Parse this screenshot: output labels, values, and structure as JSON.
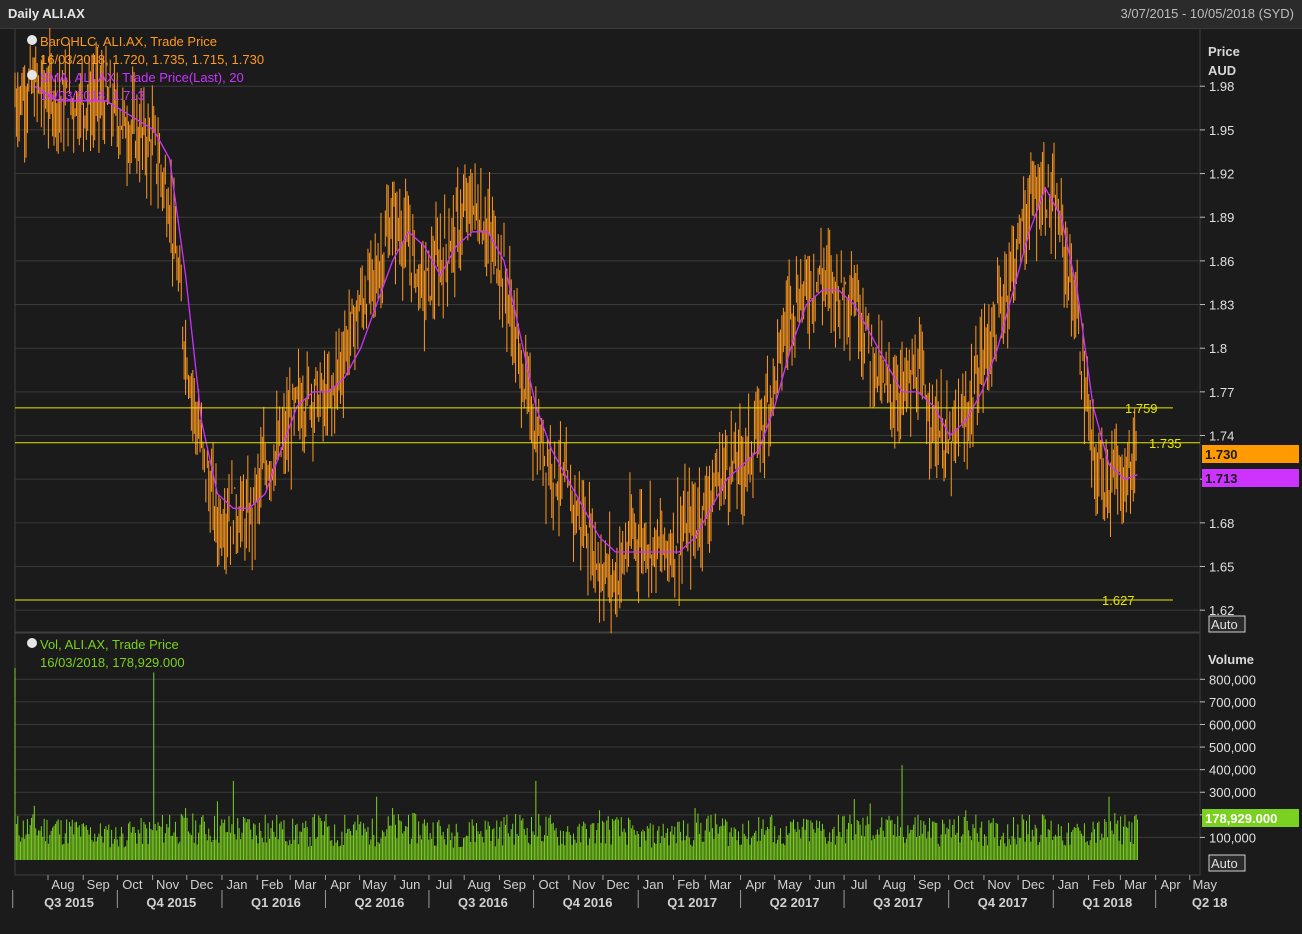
{
  "header": {
    "title": "Daily ALI.AX",
    "date_range": "3/07/2015 - 10/05/2018 (SYD)"
  },
  "colors": {
    "background": "#1b1b1b",
    "grid": "#3a3a3a",
    "price_bars": "#ff9a1f",
    "sma": "#cc33ff",
    "volume": "#7bd11f",
    "hlines": "#e6e600",
    "text_dim": "#c8c8c8"
  },
  "price_panel": {
    "legend": [
      {
        "label": "BarOHLC, ALI.AX, Trade Price",
        "values": "16/03/2018, 1.720, 1.735, 1.715, 1.730",
        "color": "#ff9a1f"
      },
      {
        "label": "SMA, ALI.AX, Trade Price(Last),  20",
        "values": "16/03/2018, 1.713",
        "color": "#cc33ff"
      }
    ],
    "axis_title": [
      "Price",
      "AUD"
    ],
    "scale_button": "Auto",
    "last_price_tag": "1.730",
    "sma_tag": "1.713"
  },
  "volume_panel": {
    "legend": {
      "label": "Vol, ALI.AX, Trade Price",
      "values": "16/03/2018, 178,929.000",
      "color": "#7bd11f"
    },
    "axis_title": "Volume",
    "scale_button": "Auto",
    "last_volume_tag": "178,929.000"
  },
  "x_axis": {
    "months": [
      "Aug",
      "Sep",
      "Oct",
      "Nov",
      "Dec",
      "Jan",
      "Feb",
      "Mar",
      "Apr",
      "May",
      "Jun",
      "Jul",
      "Aug",
      "Sep",
      "Oct",
      "Nov",
      "Dec",
      "Jan",
      "Feb",
      "Mar",
      "Apr",
      "May",
      "Jun",
      "Jul",
      "Aug",
      "Sep",
      "Oct",
      "Nov",
      "Dec",
      "Jan",
      "Feb",
      "Mar",
      "Apr",
      "May"
    ],
    "quarters": [
      "Q3 2015",
      "Q4 2015",
      "Q1 2016",
      "Q2 2016",
      "Q3 2016",
      "Q4 2016",
      "Q1 2017",
      "Q2 2017",
      "Q3 2017",
      "Q4 2017",
      "Q1 2018",
      "Q2 18"
    ]
  },
  "chart_data": [
    {
      "type": "bar",
      "subtype": "ohlc",
      "title": "BarOHLC, ALI.AX, Trade Price",
      "ylabel": "Price AUD",
      "ylim": [
        1.605,
        2.02
      ],
      "yticks": [
        1.62,
        1.65,
        1.68,
        1.71,
        1.74,
        1.77,
        1.8,
        1.83,
        1.86,
        1.89,
        1.92,
        1.95,
        1.98
      ],
      "ytick_labels": [
        "1.62",
        "1.65",
        "1.68",
        "1.71",
        "1.74",
        "1.77",
        "1.8",
        "1.83",
        "1.86",
        "1.89",
        "1.92",
        "1.95",
        "1.98"
      ],
      "grid": true,
      "last_bar": {
        "date": "16/03/2018",
        "open": 1.72,
        "high": 1.735,
        "low": 1.715,
        "close": 1.73
      },
      "series": [
        {
          "name": "BarOHLC, ALI.AX, Trade Price",
          "x": [
            "2015-07-03",
            "2015-07-20",
            "2015-08-10",
            "2015-08-31",
            "2015-09-21",
            "2015-10-12",
            "2015-11-02",
            "2015-11-16",
            "2015-11-30",
            "2015-12-14",
            "2015-12-28",
            "2016-01-11",
            "2016-01-25",
            "2016-02-08",
            "2016-02-22",
            "2016-03-07",
            "2016-03-21",
            "2016-04-04",
            "2016-04-18",
            "2016-05-02",
            "2016-05-16",
            "2016-05-30",
            "2016-06-13",
            "2016-06-27",
            "2016-07-11",
            "2016-07-25",
            "2016-08-08",
            "2016-08-22",
            "2016-09-05",
            "2016-09-19",
            "2016-10-03",
            "2016-10-17",
            "2016-10-31",
            "2016-11-14",
            "2016-11-28",
            "2016-12-12",
            "2016-12-26",
            "2017-01-09",
            "2017-01-23",
            "2017-02-06",
            "2017-02-20",
            "2017-03-06",
            "2017-03-20",
            "2017-04-03",
            "2017-04-17",
            "2017-05-01",
            "2017-05-15",
            "2017-05-29",
            "2017-06-12",
            "2017-06-26",
            "2017-07-10",
            "2017-07-24",
            "2017-08-07",
            "2017-08-21",
            "2017-09-04",
            "2017-09-18",
            "2017-10-02",
            "2017-10-16",
            "2017-10-30",
            "2017-11-13",
            "2017-11-27",
            "2017-12-11",
            "2017-12-25",
            "2018-01-08",
            "2018-01-22",
            "2018-02-05",
            "2018-02-19",
            "2018-03-05",
            "2018-03-16"
          ],
          "close": [
            1.97,
            1.98,
            1.97,
            1.97,
            1.97,
            1.95,
            1.94,
            1.9,
            1.8,
            1.73,
            1.68,
            1.69,
            1.68,
            1.72,
            1.73,
            1.76,
            1.77,
            1.76,
            1.8,
            1.83,
            1.85,
            1.89,
            1.87,
            1.84,
            1.86,
            1.88,
            1.9,
            1.88,
            1.85,
            1.79,
            1.74,
            1.72,
            1.7,
            1.68,
            1.65,
            1.64,
            1.67,
            1.67,
            1.66,
            1.67,
            1.68,
            1.7,
            1.72,
            1.72,
            1.74,
            1.78,
            1.83,
            1.84,
            1.85,
            1.84,
            1.84,
            1.8,
            1.77,
            1.77,
            1.78,
            1.75,
            1.73,
            1.75,
            1.79,
            1.82,
            1.86,
            1.9,
            1.91,
            1.88,
            1.82,
            1.72,
            1.71,
            1.71,
            1.73
          ]
        }
      ]
    },
    {
      "type": "line",
      "title": "SMA, ALI.AX, Trade Price(Last),  20",
      "last_value": 1.713,
      "series": [
        {
          "name": "SMA, ALI.AX, Trade Price(Last),  20",
          "x": [
            "2015-07-20",
            "2015-08-10",
            "2015-08-31",
            "2015-09-21",
            "2015-10-12",
            "2015-11-02",
            "2015-11-16",
            "2015-11-30",
            "2015-12-14",
            "2015-12-28",
            "2016-01-11",
            "2016-01-25",
            "2016-02-08",
            "2016-02-22",
            "2016-03-07",
            "2016-03-21",
            "2016-04-04",
            "2016-04-18",
            "2016-05-02",
            "2016-05-16",
            "2016-05-30",
            "2016-06-13",
            "2016-06-27",
            "2016-07-11",
            "2016-07-25",
            "2016-08-08",
            "2016-08-22",
            "2016-09-05",
            "2016-09-19",
            "2016-10-03",
            "2016-10-17",
            "2016-10-31",
            "2016-11-14",
            "2016-11-28",
            "2016-12-12",
            "2016-12-26",
            "2017-01-09",
            "2017-01-23",
            "2017-02-06",
            "2017-02-20",
            "2017-03-06",
            "2017-03-20",
            "2017-04-03",
            "2017-04-17",
            "2017-05-01",
            "2017-05-15",
            "2017-05-29",
            "2017-06-12",
            "2017-06-26",
            "2017-07-10",
            "2017-07-24",
            "2017-08-07",
            "2017-08-21",
            "2017-09-04",
            "2017-09-18",
            "2017-10-02",
            "2017-10-16",
            "2017-10-30",
            "2017-11-13",
            "2017-11-27",
            "2017-12-11",
            "2017-12-25",
            "2018-01-08",
            "2018-01-22",
            "2018-02-05",
            "2018-02-19",
            "2018-03-05",
            "2018-03-16"
          ],
          "values": [
            1.98,
            1.97,
            1.97,
            1.97,
            1.96,
            1.95,
            1.93,
            1.85,
            1.75,
            1.7,
            1.69,
            1.69,
            1.7,
            1.73,
            1.76,
            1.77,
            1.77,
            1.78,
            1.8,
            1.83,
            1.86,
            1.88,
            1.87,
            1.85,
            1.87,
            1.88,
            1.88,
            1.86,
            1.81,
            1.76,
            1.73,
            1.71,
            1.69,
            1.67,
            1.66,
            1.66,
            1.66,
            1.66,
            1.66,
            1.67,
            1.69,
            1.71,
            1.72,
            1.73,
            1.76,
            1.8,
            1.83,
            1.84,
            1.84,
            1.83,
            1.81,
            1.79,
            1.77,
            1.77,
            1.76,
            1.74,
            1.75,
            1.77,
            1.8,
            1.84,
            1.88,
            1.91,
            1.89,
            1.84,
            1.76,
            1.72,
            1.71,
            1.713
          ]
        }
      ]
    },
    {
      "type": "line",
      "subtype": "horizontal_levels",
      "title": "Horizontal levels",
      "series": [
        {
          "name": "1.759",
          "values": [
            1.759
          ]
        },
        {
          "name": "1.735",
          "values": [
            1.735
          ]
        },
        {
          "name": "1.627",
          "values": [
            1.627
          ]
        }
      ]
    },
    {
      "type": "bar",
      "title": "Vol, ALI.AX, Trade Price",
      "ylabel": "Volume",
      "ylim": [
        0,
        850000
      ],
      "yticks": [
        100000,
        200000,
        300000,
        400000,
        500000,
        600000,
        700000,
        800000
      ],
      "ytick_labels": [
        "100,000",
        "200,000",
        "300,000",
        "400,000",
        "500,000",
        "600,000",
        "700,000",
        "800,000"
      ],
      "last_value": 178929,
      "series": [
        {
          "name": "Vol, ALI.AX, Trade Price",
          "x": [
            "2015-07-03",
            "2015-07-20",
            "2015-08-10",
            "2015-08-31",
            "2015-09-21",
            "2015-10-12",
            "2015-11-02",
            "2015-11-16",
            "2015-11-30",
            "2015-12-14",
            "2015-12-28",
            "2016-01-11",
            "2016-01-25",
            "2016-02-08",
            "2016-02-22",
            "2016-03-07",
            "2016-03-21",
            "2016-04-04",
            "2016-04-18",
            "2016-05-02",
            "2016-05-16",
            "2016-05-30",
            "2016-06-13",
            "2016-06-27",
            "2016-07-11",
            "2016-07-25",
            "2016-08-08",
            "2016-08-22",
            "2016-09-05",
            "2016-09-19",
            "2016-10-03",
            "2016-10-17",
            "2016-10-31",
            "2016-11-14",
            "2016-11-28",
            "2016-12-12",
            "2016-12-26",
            "2017-01-09",
            "2017-01-23",
            "2017-02-06",
            "2017-02-20",
            "2017-03-06",
            "2017-03-20",
            "2017-04-03",
            "2017-04-17",
            "2017-05-01",
            "2017-05-15",
            "2017-05-29",
            "2017-06-12",
            "2017-06-26",
            "2017-07-10",
            "2017-07-24",
            "2017-08-07",
            "2017-08-21",
            "2017-09-04",
            "2017-09-18",
            "2017-10-02",
            "2017-10-16",
            "2017-10-30",
            "2017-11-13",
            "2017-11-27",
            "2017-12-11",
            "2017-12-25",
            "2018-01-08",
            "2018-01-22",
            "2018-02-05",
            "2018-02-19",
            "2018-03-05",
            "2018-03-16"
          ],
          "values": [
            850000,
            240000,
            180000,
            160000,
            150000,
            170000,
            830000,
            200000,
            230000,
            190000,
            260000,
            350000,
            180000,
            200000,
            170000,
            160000,
            190000,
            150000,
            200000,
            170000,
            280000,
            230000,
            200000,
            180000,
            150000,
            160000,
            180000,
            170000,
            190000,
            200000,
            350000,
            160000,
            150000,
            170000,
            220000,
            180000,
            140000,
            150000,
            160000,
            170000,
            230000,
            200000,
            170000,
            160000,
            190000,
            150000,
            170000,
            180000,
            160000,
            200000,
            270000,
            250000,
            180000,
            420000,
            200000,
            170000,
            180000,
            220000,
            170000,
            160000,
            190000,
            200000,
            180000,
            150000,
            160000,
            170000,
            280000,
            200000,
            178929
          ]
        }
      ]
    }
  ]
}
